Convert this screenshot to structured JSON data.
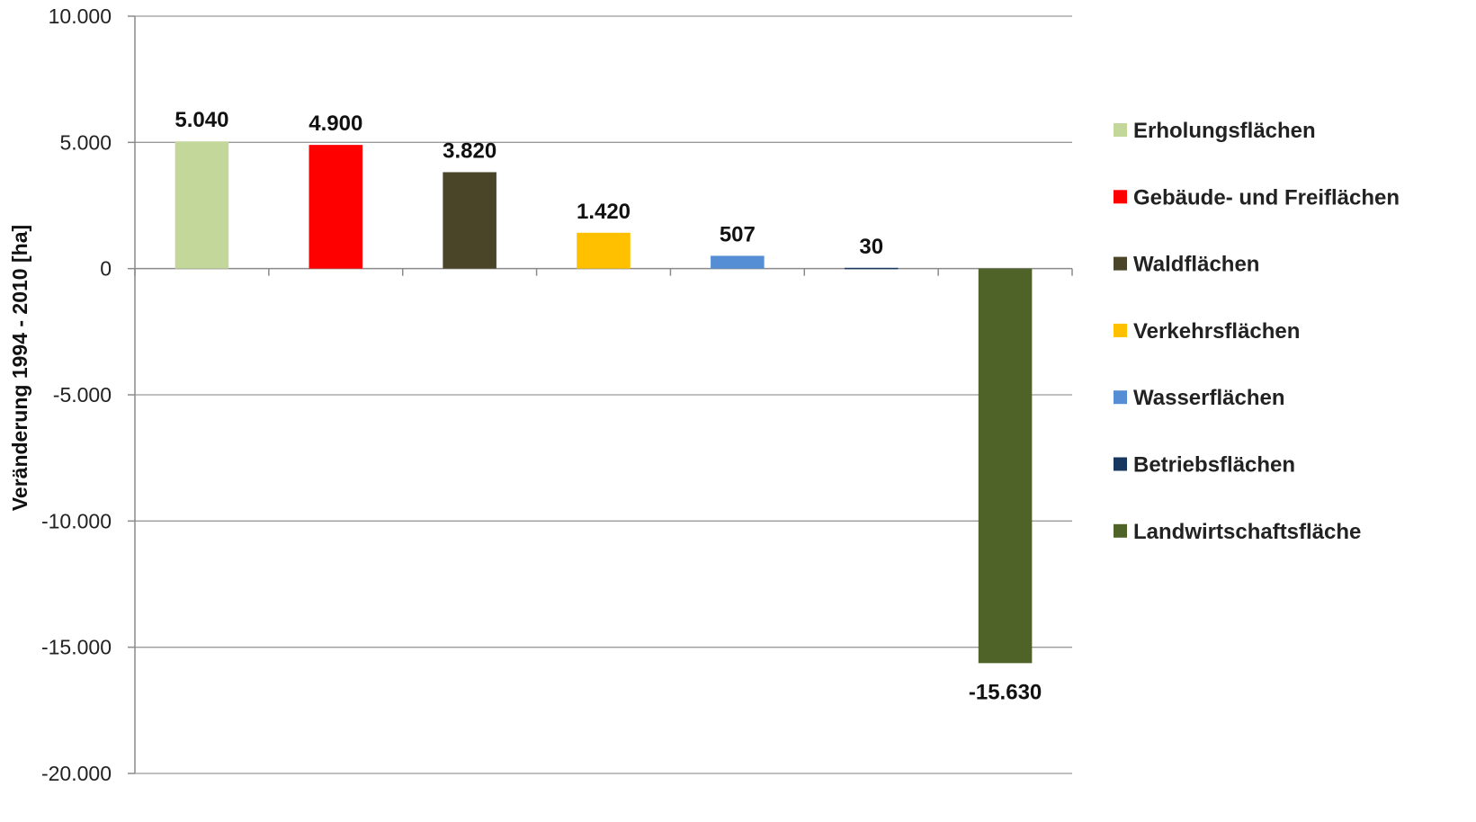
{
  "chart_data": {
    "type": "bar",
    "categories": [
      "Erholungsflächen",
      "Gebäude- und Freiflächen",
      "Waldflächen",
      "Verkehrsflächen",
      "Wasserflächen",
      "Betriebsflächen",
      "Landwirtschaftsfläche"
    ],
    "values": [
      5040,
      4900,
      3820,
      1420,
      507,
      30,
      -15630
    ],
    "value_labels": [
      "5.040",
      "4.900",
      "3.820",
      "1.420",
      "507",
      "30",
      "-15.630"
    ],
    "colors": [
      "#c4d79b",
      "#ff0000",
      "#4a4428",
      "#ffc000",
      "#558ed5",
      "#17375e",
      "#4f6228"
    ],
    "ylabel": "Veränderung 1994 - 2010 [ha]",
    "xlabel": "",
    "ylim": [
      -20000,
      10000
    ],
    "yticks": [
      10000,
      5000,
      0,
      -5000,
      -10000,
      -15000,
      -20000
    ],
    "ytick_labels": [
      "10.000",
      "5.000",
      "0",
      "-5.000",
      "-10.000",
      "-15.000",
      "-20.000"
    ],
    "grid": true,
    "legend_position": "right"
  }
}
